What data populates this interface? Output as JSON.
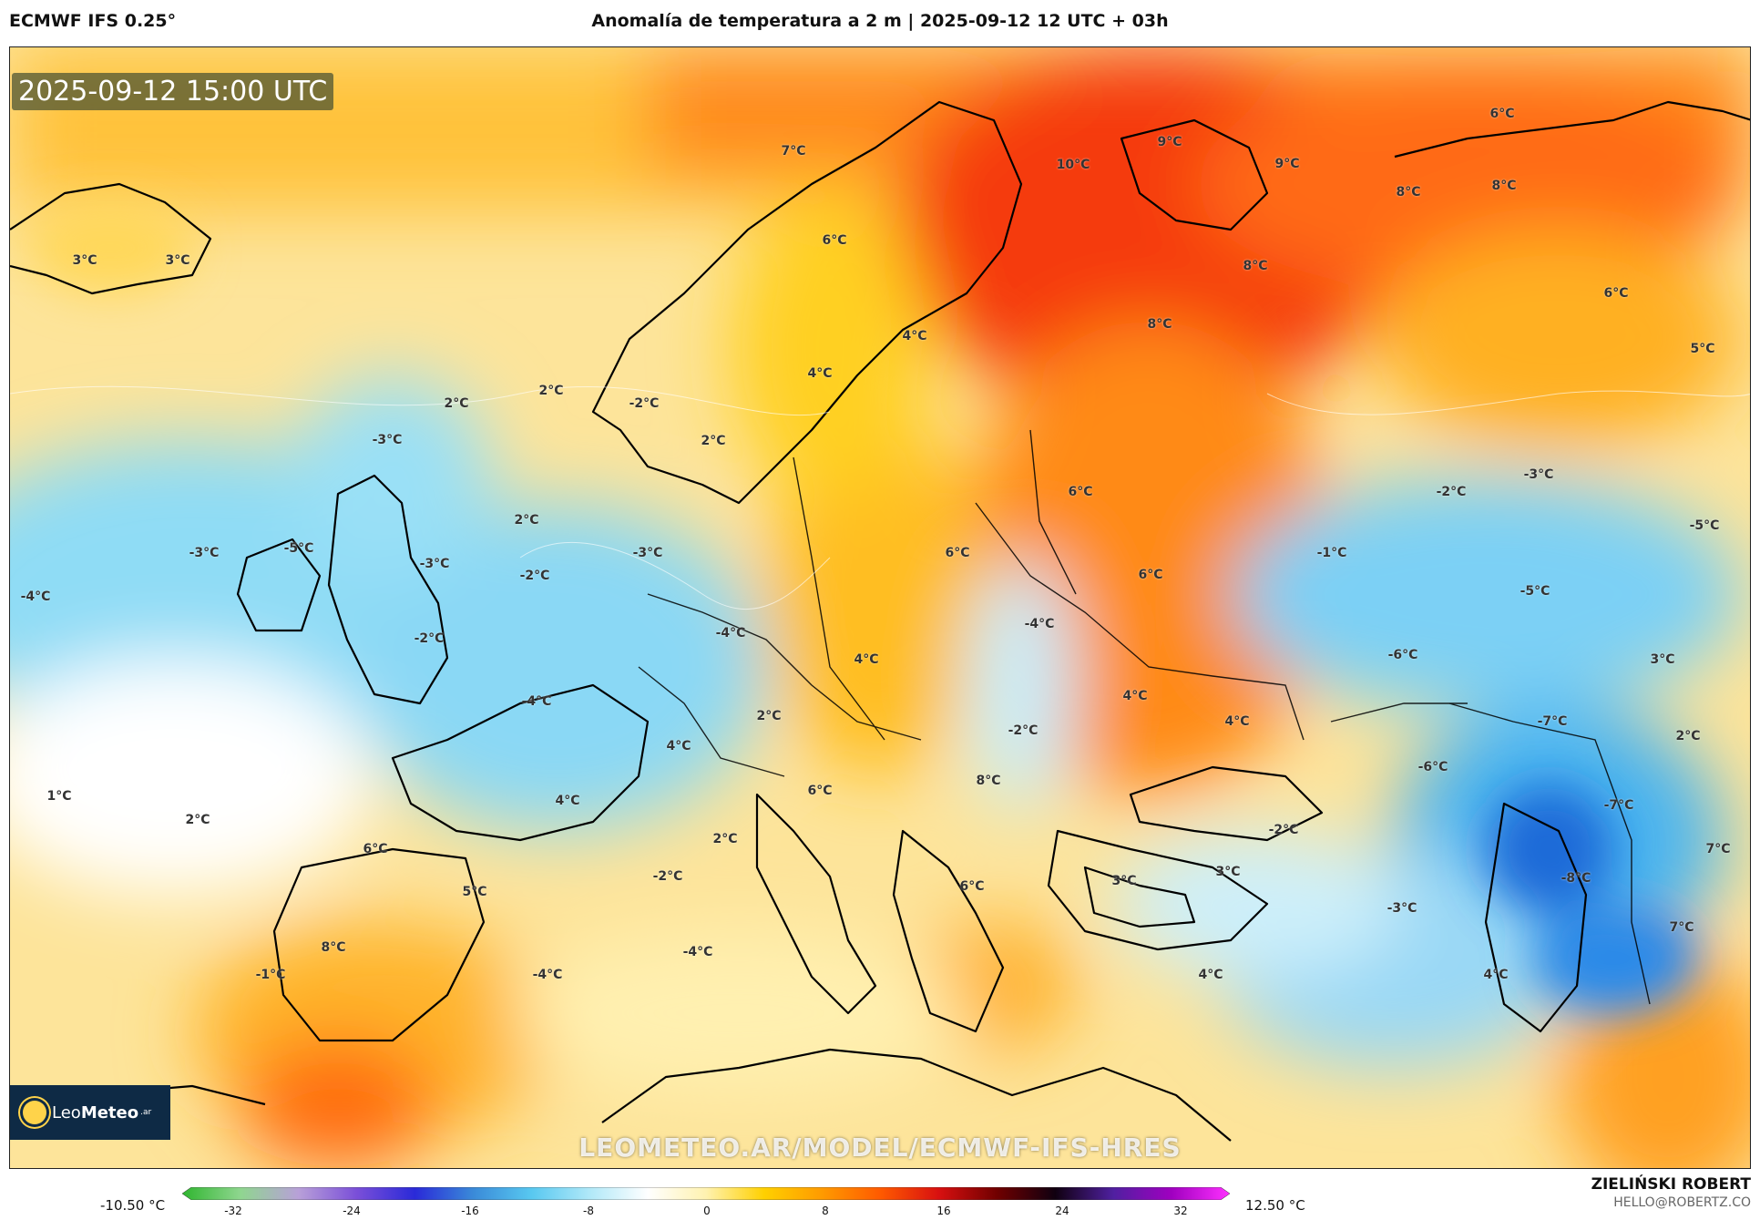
{
  "header": {
    "model": "ECMWF IFS 0.25°",
    "title": "Anomalía de temperatura a 2 m | 2025-09-12 12 UTC + 03h"
  },
  "map": {
    "timestamp": "2025-09-12 15:00 UTC",
    "watermark": "LEOMETEO.AR/MODEL/ECMWF-IFS-HRES",
    "labels": [
      "3°C",
      "3°C",
      "7°C",
      "6°C",
      "10°C",
      "9°C",
      "9°C",
      "8°C",
      "8°C",
      "6°C",
      "8°C",
      "8°C",
      "6°C",
      "4°C",
      "4°C",
      "5°C",
      "2°C",
      "2°C",
      "-2°C",
      "-3°C",
      "2°C",
      "-3°C",
      "2°C",
      "-3°C",
      "-3°C",
      "-5°C",
      "-2°C",
      "-3°C",
      "-5°C",
      "-1°C",
      "-2°C",
      "6°C",
      "6°C",
      "6°C",
      "-5°C",
      "-4°C",
      "-6°C",
      "-2°C",
      "-4°C",
      "4°C",
      "3°C",
      "-4°C",
      "4°C",
      "4°C",
      "-7°C",
      "2°C",
      "2°C",
      "-4°C",
      "-2°C",
      "-6°C",
      "1°C",
      "4°C",
      "4°C",
      "6°C",
      "8°C",
      "-2°C",
      "-7°C",
      "2°C",
      "6°C",
      "2°C",
      "3°C",
      "3°C",
      "-8°C",
      "7°C",
      "5°C",
      "-2°C",
      "6°C",
      "-3°C",
      "8°C",
      "-1°C",
      "-4°C",
      "-4°C",
      "4°C",
      "4°C",
      "7°C"
    ]
  },
  "logo": {
    "brand_a": "Leo",
    "brand_b": "Meteo",
    "suffix": ".ar"
  },
  "colorbar": {
    "min_label": "-10.50 °C",
    "max_label": "12.50 °C",
    "ticks": [
      "-32",
      "-24",
      "-16",
      "-8",
      "0",
      "8",
      "16",
      "24",
      "32"
    ],
    "colors": [
      "#2fb52f",
      "#8fd68f",
      "#b8a0d8",
      "#7a4fd8",
      "#2a2ad8",
      "#3a8ad8",
      "#58c8f0",
      "#b0e8f8",
      "#ffffff",
      "#fff2b0",
      "#ffd000",
      "#ff9a00",
      "#ff5a00",
      "#d81010",
      "#700000",
      "#100010",
      "#5020a0",
      "#a000c0",
      "#ff30ff"
    ]
  },
  "author": {
    "name": "ZIELIŃSKI ROBERT",
    "email": "HELLO@ROBERTZ.CO"
  }
}
